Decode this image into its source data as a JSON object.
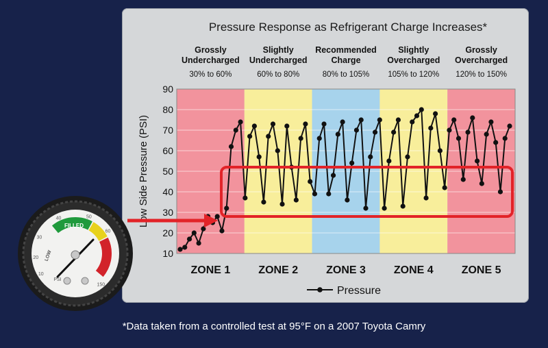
{
  "chart_data": {
    "type": "line",
    "title": "Pressure Response as Refrigerant Charge Increases*",
    "ylabel": "Low Side Pressure (PSI)",
    "ylim": [
      10,
      90
    ],
    "yticks": [
      10,
      20,
      30,
      40,
      50,
      60,
      70,
      80,
      90
    ],
    "grid": true,
    "legend": "bottom-center",
    "zones": [
      {
        "name": "ZONE 1",
        "heading1": "Grossly",
        "heading2": "Undercharged",
        "range": "30% to 60%",
        "color": "#f2939d"
      },
      {
        "name": "ZONE 2",
        "heading1": "Slightly",
        "heading2": "Undercharged",
        "range": "60% to 80%",
        "color": "#f8ee9b"
      },
      {
        "name": "ZONE 3",
        "heading1": "Recommended",
        "heading2": "Charge",
        "range": "80% to 105%",
        "color": "#a7d3ec"
      },
      {
        "name": "ZONE 4",
        "heading1": "Slightly",
        "heading2": "Overcharged",
        "range": "105% to 120%",
        "color": "#f8ee9b"
      },
      {
        "name": "ZONE 5",
        "heading1": "Grossly",
        "heading2": "Overcharged",
        "range": "120% to 150%",
        "color": "#f2939d"
      }
    ],
    "series": [
      {
        "name": "Pressure",
        "color": "#111111",
        "values": [
          12,
          13,
          17,
          20,
          15,
          22,
          28,
          25,
          28,
          21,
          32,
          62,
          70,
          74,
          37,
          67,
          72,
          57,
          35,
          67,
          73,
          60,
          34,
          72,
          52,
          36,
          66,
          73,
          45,
          39,
          66,
          73,
          39,
          48,
          68,
          74,
          36,
          54,
          70,
          75,
          32,
          57,
          69,
          75,
          32,
          55,
          69,
          75,
          33,
          57,
          74,
          77,
          80,
          37,
          71,
          78,
          60,
          42,
          70,
          75,
          66,
          46,
          69,
          76,
          55,
          44,
          68,
          74,
          64,
          40,
          66,
          72
        ]
      }
    ],
    "highlight_box_range": [
      28,
      52
    ]
  },
  "footnote": "*Data taken from a controlled test at 95°F on a 2007 Toyota Camry",
  "gauge": {
    "face_labels": [
      "10",
      "20",
      "30",
      "40",
      "50",
      "60",
      "150"
    ],
    "filled_label": "FILLED",
    "low_label": "LOW",
    "unit_label": "PSI",
    "colors": {
      "green": "#1f9a3c",
      "yellow": "#e8d21c",
      "red": "#d2232a"
    }
  },
  "colors": {
    "arrow": "#e22328",
    "highlight_box": "#e22328"
  }
}
